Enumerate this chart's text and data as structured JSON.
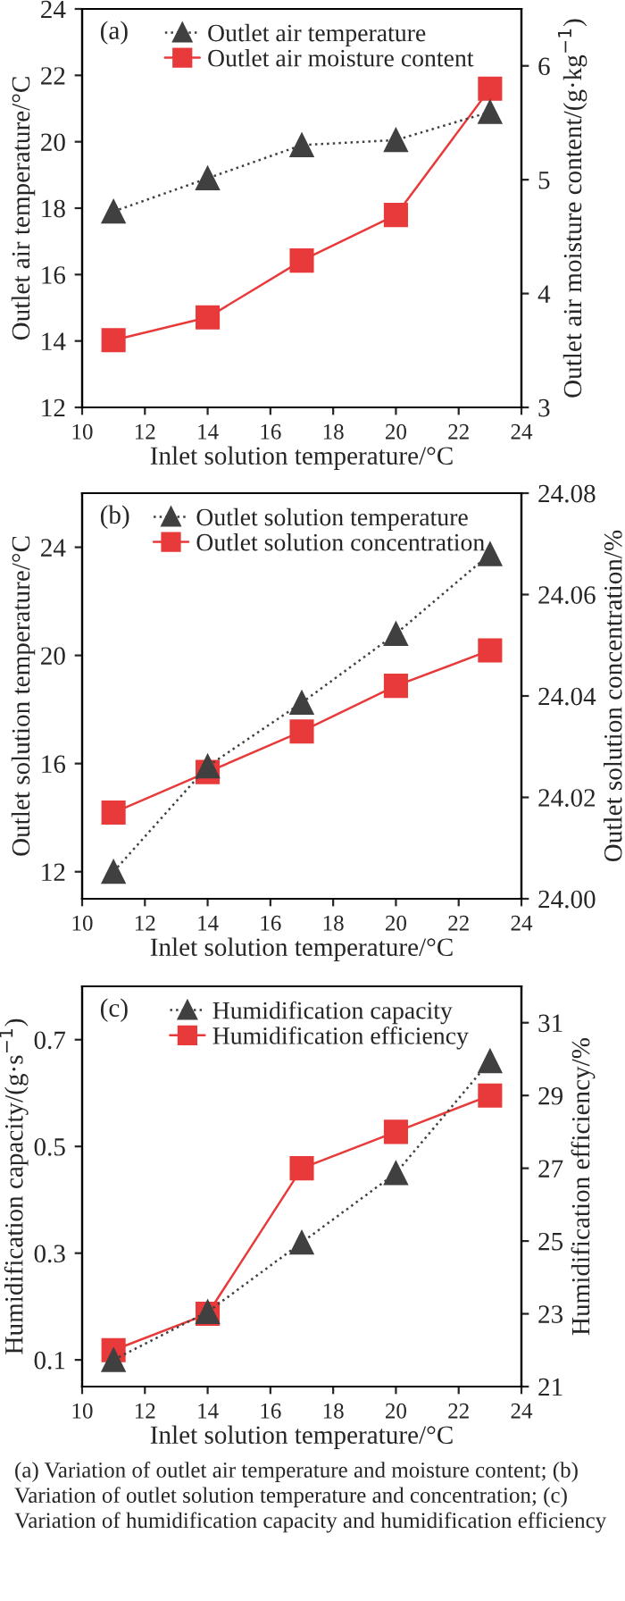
{
  "chart_data": [
    {
      "type": "line",
      "xlabel": "Inlet solution temperature/°C",
      "ylabel": "Outlet air temperature/°C",
      "y2label": "Outlet air moisture content/(g·kg$^{−1}$)",
      "annotations": [
        "(a)"
      ],
      "x": [
        11,
        14,
        17,
        20,
        23
      ],
      "xlim": [
        10,
        24
      ],
      "xticks": [
        10,
        12,
        14,
        16,
        18,
        20,
        22,
        24
      ],
      "ylim": [
        12,
        24
      ],
      "yticks": [
        12,
        14,
        16,
        18,
        20,
        22,
        24
      ],
      "y2lim": [
        3,
        6.5
      ],
      "y2ticks": [
        3,
        4,
        5,
        6
      ],
      "legend": "top",
      "grid": false,
      "series": [
        {
          "name": "Outlet air temperature",
          "color": "#404040",
          "marker": "triangle",
          "line_style": "dotted",
          "values": [
            17.9,
            18.9,
            19.9,
            20.05,
            20.9
          ]
        },
        {
          "name": "Outlet air moisture content",
          "color": "#e83a3a",
          "marker": "square",
          "line_style": "solid",
          "axis": "y2",
          "values": [
            3.59,
            3.79,
            4.29,
            4.69,
            5.8
          ]
        }
      ]
    },
    {
      "type": "line",
      "xlabel": "Inlet solution temperature/°C",
      "ylabel": "Outlet solution temperature/°C",
      "y2label": "Outlet solution concentration/%",
      "annotations": [
        "(b)"
      ],
      "x": [
        11,
        14,
        17,
        20,
        23
      ],
      "xlim": [
        10,
        24
      ],
      "xticks": [
        10,
        12,
        14,
        16,
        18,
        20,
        22,
        24
      ],
      "ylim": [
        11,
        26
      ],
      "yticks": [
        12,
        16,
        20,
        24
      ],
      "y2lim": [
        24.0,
        24.08
      ],
      "y2ticks": [
        {
          "value": 24.0,
          "label": "24.00"
        },
        {
          "value": 24.02,
          "label": "24.02"
        },
        {
          "value": 24.04,
          "label": "24.04"
        },
        {
          "value": 24.06,
          "label": "24.06"
        },
        {
          "value": 24.08,
          "label": "24.08"
        }
      ],
      "legend": "top",
      "grid": false,
      "series": [
        {
          "name": "Outlet solution temperature",
          "color": "#404040",
          "marker": "triangle",
          "line_style": "dotted",
          "values": [
            12.0,
            15.9,
            18.25,
            20.8,
            23.75
          ]
        },
        {
          "name": "Outlet solution concentration",
          "color": "#e83a3a",
          "marker": "square",
          "line_style": "solid",
          "axis": "y2",
          "values": [
            24.017,
            24.025,
            24.033,
            24.042,
            24.049
          ]
        }
      ]
    },
    {
      "type": "line",
      "xlabel": "Inlet solution temperature/°C",
      "ylabel": "Humidification capacity/(g·s$^{−1}$)",
      "y2label": "Humidification efficiency/%",
      "annotations": [
        "(c)",
        "(a) Variation of outlet air temperature and moisture content; (b) Variation of outlet solution temperature and concentration; (c) Variation of humidification capacity and humidification efficiency"
      ],
      "x": [
        11,
        14,
        17,
        20,
        23
      ],
      "xlim": [
        10,
        24
      ],
      "xticks": [
        10,
        12,
        14,
        16,
        18,
        20,
        22,
        24
      ],
      "ylim": [
        0.05,
        0.8
      ],
      "yticks": [
        0.1,
        0.3,
        0.5,
        0.7
      ],
      "y2lim": [
        21,
        32
      ],
      "y2ticks": [
        21,
        23,
        25,
        27,
        29,
        31
      ],
      "legend": "top",
      "grid": false,
      "series": [
        {
          "name": "Humidification capacity",
          "color": "#404040",
          "marker": "triangle",
          "line_style": "dotted",
          "values": [
            0.1,
            0.19,
            0.32,
            0.45,
            0.66
          ]
        },
        {
          "name": "Humidification efficiency",
          "color": "#e83a3a",
          "marker": "square",
          "line_style": "solid",
          "axis": "y2",
          "values": [
            22.0,
            23.0,
            27.0,
            28.0,
            29.0
          ]
        }
      ]
    }
  ]
}
